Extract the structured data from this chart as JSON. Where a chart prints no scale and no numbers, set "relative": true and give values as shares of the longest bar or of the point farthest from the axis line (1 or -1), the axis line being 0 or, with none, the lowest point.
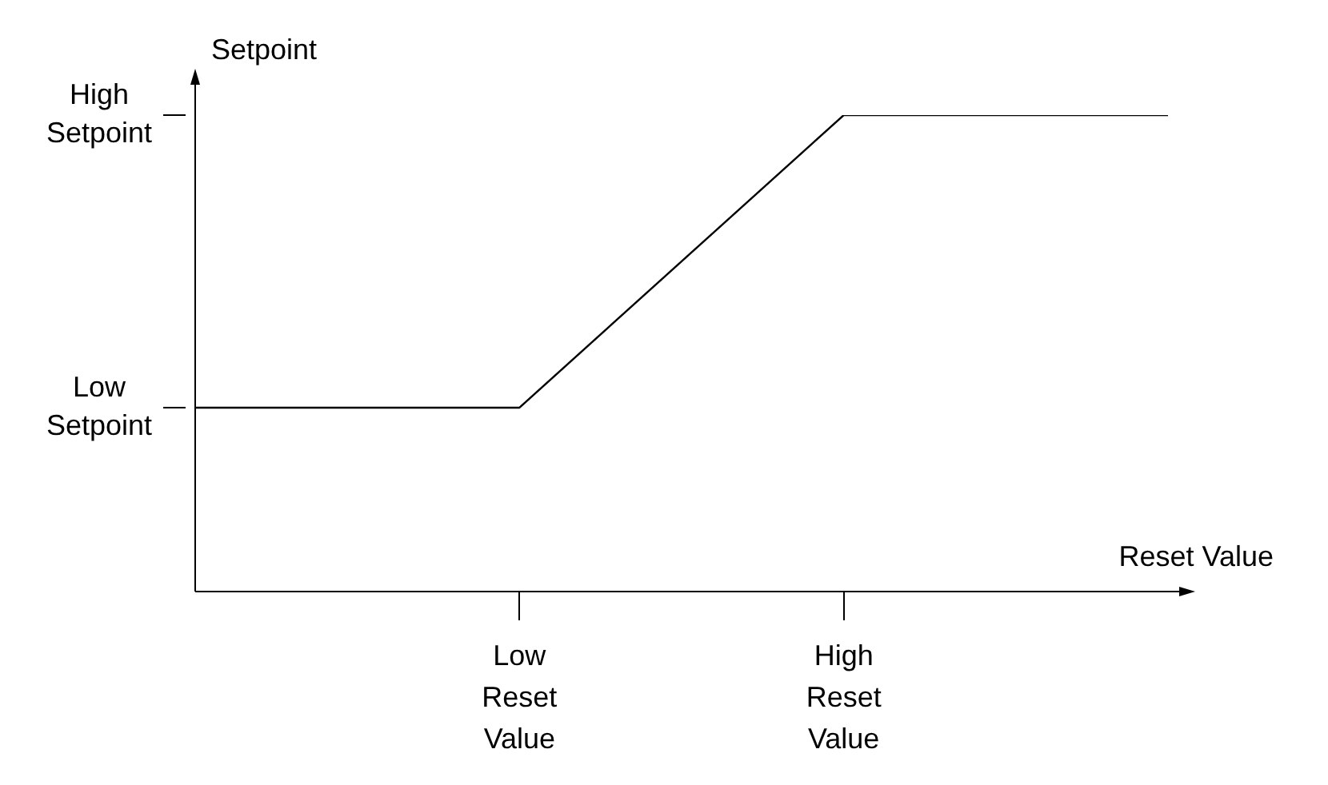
{
  "chart_data": {
    "type": "line",
    "xlabel": "Reset Value",
    "ylabel": "Setpoint",
    "relative": true,
    "categories": [
      null,
      "Low Reset Value",
      "High Reset Value",
      null
    ],
    "series": [
      {
        "color": "#000000",
        "values": [
          0.386,
          0.386,
          1,
          1
        ]
      }
    ],
    "ref_lines": [
      {
        "axis": "y",
        "value": 0.386,
        "label": "Low Setpoint"
      },
      {
        "axis": "y",
        "value": 1,
        "label": "High Setpoint"
      }
    ],
    "grid": false,
    "legend": false,
    "marker": "none",
    "line_style": "solid"
  }
}
